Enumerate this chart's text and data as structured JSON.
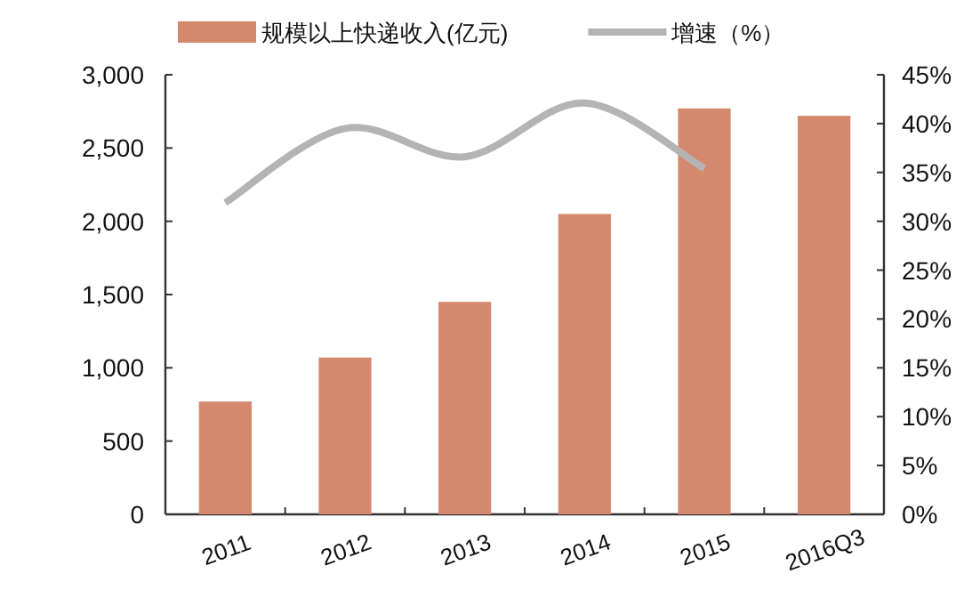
{
  "chart_data": {
    "type": "bar",
    "categories": [
      "2011",
      "2012",
      "2013",
      "2014",
      "2015",
      "2016Q3"
    ],
    "series": [
      {
        "name": "规模以上快递收入(亿元)",
        "color": "#d4896f",
        "values": [
          770,
          1070,
          1450,
          2050,
          2770,
          2720
        ]
      },
      {
        "name": "增速（%）",
        "type": "line",
        "axis": "y2",
        "color": "#b4b4b4",
        "values": [
          31.9,
          39.5,
          36.6,
          42.1,
          35.4,
          null
        ]
      }
    ],
    "ylim": [
      0,
      3000
    ],
    "yticks": [
      {
        "value": 0,
        "label": "0"
      },
      {
        "value": 500,
        "label": "500"
      },
      {
        "value": 1000,
        "label": "1,000"
      },
      {
        "value": 1500,
        "label": "1,500"
      },
      {
        "value": 2000,
        "label": "2,000"
      },
      {
        "value": 2500,
        "label": "2,500"
      },
      {
        "value": 3000,
        "label": "3,000"
      }
    ],
    "y2lim": [
      0,
      45
    ],
    "y2ticks": [
      {
        "value": 0,
        "label": "0%"
      },
      {
        "value": 5,
        "label": "5%"
      },
      {
        "value": 10,
        "label": "10%"
      },
      {
        "value": 15,
        "label": "15%"
      },
      {
        "value": 20,
        "label": "20%"
      },
      {
        "value": 25,
        "label": "25%"
      },
      {
        "value": 30,
        "label": "30%"
      },
      {
        "value": 35,
        "label": "35%"
      },
      {
        "value": 40,
        "label": "40%"
      },
      {
        "value": 45,
        "label": "45%"
      }
    ],
    "legend": "top",
    "marker": "none"
  }
}
